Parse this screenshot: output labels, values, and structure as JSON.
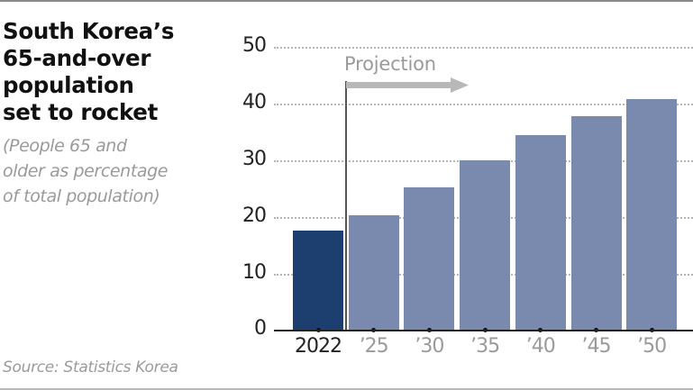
{
  "header": {
    "title_lines": [
      "South Korea’s",
      "65-and-over",
      "population",
      "set to rocket"
    ],
    "subtitle_lines": [
      "(People 65 and",
      "older as percentage",
      "of total population)"
    ]
  },
  "footer": {
    "source": "Source: Statistics Korea"
  },
  "annotation": {
    "projection_label": "Projection"
  },
  "colors": {
    "actual_bar": "#1d3f70",
    "projection_bar": "#7a8aae",
    "arrow": "#b8b8b8"
  },
  "chart_data": {
    "type": "bar",
    "title": "South Korea’s 65-and-over population set to rocket",
    "subtitle": "(People 65 and older as percentage of total population)",
    "xlabel": "",
    "ylabel": "",
    "categories": [
      "2022",
      "’25",
      "’30",
      "’35",
      "’40",
      "’45",
      "’50"
    ],
    "values": [
      17.5,
      20.3,
      25.2,
      30.0,
      34.4,
      37.8,
      40.8
    ],
    "series_status": [
      "actual",
      "projection",
      "projection",
      "projection",
      "projection",
      "projection",
      "projection"
    ],
    "ylim": [
      0,
      50
    ],
    "yticks": [
      "0",
      "10",
      "20",
      "30",
      "40",
      "50"
    ],
    "grid": true,
    "annotations": [
      "Projection (arrow starting after 2022)"
    ],
    "source": "Source: Statistics Korea"
  }
}
